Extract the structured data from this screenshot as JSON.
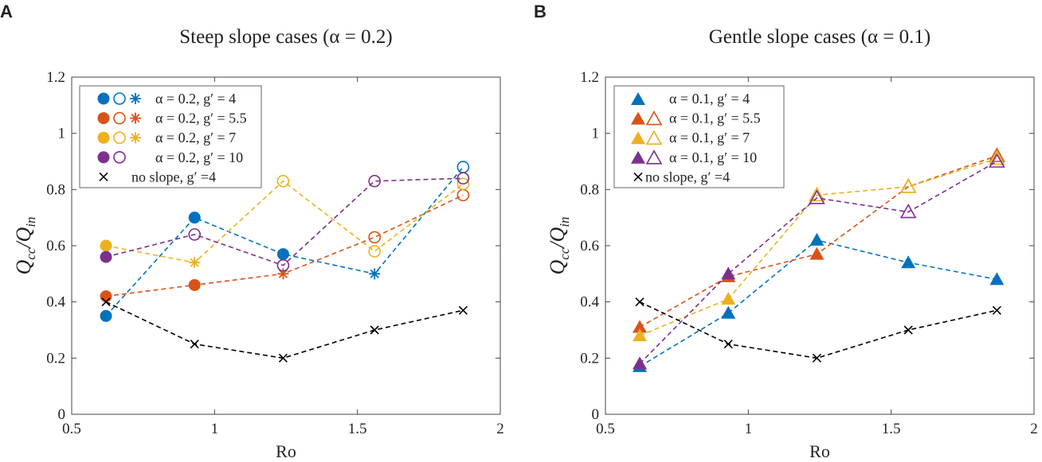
{
  "chart_data": [
    {
      "type": "line",
      "panel_label": "A",
      "title": "Steep slope cases (α = 0.2)",
      "xlabel": "Ro",
      "ylabel": "Q_cc/Q_in",
      "xlim": [
        0.5,
        2
      ],
      "ylim": [
        0,
        1.2
      ],
      "xticks": [
        "0.5",
        "1",
        "1.5",
        "2"
      ],
      "yticks": [
        "0",
        "0.2",
        "0.4",
        "0.6",
        "0.8",
        "1",
        "1.2"
      ],
      "legend_position": "top-left",
      "x": [
        0.62,
        0.93,
        1.24,
        1.56,
        1.87
      ],
      "series": [
        {
          "name": "α  = 0.2, g′ = 4",
          "color": "#0072bd",
          "values": [
            0.35,
            0.7,
            0.57,
            0.5,
            0.88
          ],
          "markers": [
            "filled-circle",
            "filled-circle",
            "filled-circle",
            "star",
            "open-circle"
          ],
          "legend_markers": [
            "filled-circle",
            "open-circle",
            "star"
          ]
        },
        {
          "name": "α  = 0.2, g′ = 5.5",
          "color": "#d95319",
          "values": [
            0.42,
            0.46,
            0.5,
            0.63,
            0.78
          ],
          "markers": [
            "filled-circle",
            "filled-circle",
            "star",
            "open-circle",
            "open-circle"
          ],
          "legend_markers": [
            "filled-circle",
            "open-circle",
            "star"
          ]
        },
        {
          "name": "α  = 0.2, g′ = 7",
          "color": "#edb120",
          "values": [
            0.6,
            0.54,
            0.83,
            0.58,
            0.82
          ],
          "markers": [
            "filled-circle",
            "star",
            "open-circle",
            "open-circle",
            "open-circle"
          ],
          "legend_markers": [
            "filled-circle",
            "open-circle",
            "star"
          ]
        },
        {
          "name": "α  = 0.2, g′ = 10",
          "color": "#7e2f8e",
          "values": [
            0.56,
            0.64,
            0.53,
            0.83,
            0.84
          ],
          "markers": [
            "filled-circle",
            "open-circle",
            "open-circle",
            "open-circle",
            "open-circle"
          ],
          "legend_markers": [
            "filled-circle",
            "open-circle"
          ]
        },
        {
          "name": "no slope, g′ =4",
          "color": "#000000",
          "values": [
            0.4,
            0.25,
            0.2,
            0.3,
            0.37
          ],
          "markers": [
            "x",
            "x",
            "x",
            "x",
            "x"
          ],
          "legend_markers": [
            "x"
          ]
        }
      ]
    },
    {
      "type": "line",
      "panel_label": "B",
      "title": "Gentle slope cases (α = 0.1)",
      "xlabel": "Ro",
      "ylabel": "Q_cc/Q_in",
      "xlim": [
        0.5,
        2
      ],
      "ylim": [
        0,
        1.2
      ],
      "xticks": [
        "0.5",
        "1",
        "1.5",
        "2"
      ],
      "yticks": [
        "0",
        "0.2",
        "0.4",
        "0.6",
        "0.8",
        "1",
        "1.2"
      ],
      "legend_position": "top-left",
      "x": [
        0.62,
        0.93,
        1.24,
        1.56,
        1.87
      ],
      "series": [
        {
          "name": "α  = 0.1, g′ = 4",
          "color": "#0072bd",
          "values": [
            0.17,
            0.36,
            0.62,
            0.54,
            0.48
          ],
          "markers": [
            "filled-tri",
            "filled-tri",
            "filled-tri",
            "filled-tri",
            "filled-tri"
          ],
          "legend_markers": [
            "filled-tri"
          ]
        },
        {
          "name": "α  = 0.1, g′ = 5.5",
          "color": "#d95319",
          "values": [
            0.31,
            0.49,
            0.57,
            0.81,
            0.92
          ],
          "markers": [
            "filled-tri",
            "filled-tri",
            "filled-tri",
            "open-tri",
            "open-tri"
          ],
          "legend_markers": [
            "filled-tri",
            "open-tri"
          ]
        },
        {
          "name": "α  = 0.1, g′ = 7",
          "color": "#edb120",
          "values": [
            0.28,
            0.41,
            0.78,
            0.81,
            0.91
          ],
          "markers": [
            "filled-tri",
            "filled-tri",
            "open-tri",
            "open-tri",
            "open-tri"
          ],
          "legend_markers": [
            "filled-tri",
            "open-tri"
          ]
        },
        {
          "name": "α  = 0.1, g′ = 10",
          "color": "#7e2f8e",
          "values": [
            0.18,
            0.5,
            0.77,
            0.72,
            0.9
          ],
          "markers": [
            "filled-tri",
            "filled-tri",
            "open-tri",
            "open-tri",
            "open-tri"
          ],
          "legend_markers": [
            "filled-tri",
            "open-tri"
          ]
        },
        {
          "name": "no slope, g′ =4",
          "color": "#000000",
          "values": [
            0.4,
            0.25,
            0.2,
            0.3,
            0.37
          ],
          "markers": [
            "x",
            "x",
            "x",
            "x",
            "x"
          ],
          "legend_markers": [
            "x"
          ]
        }
      ]
    }
  ]
}
